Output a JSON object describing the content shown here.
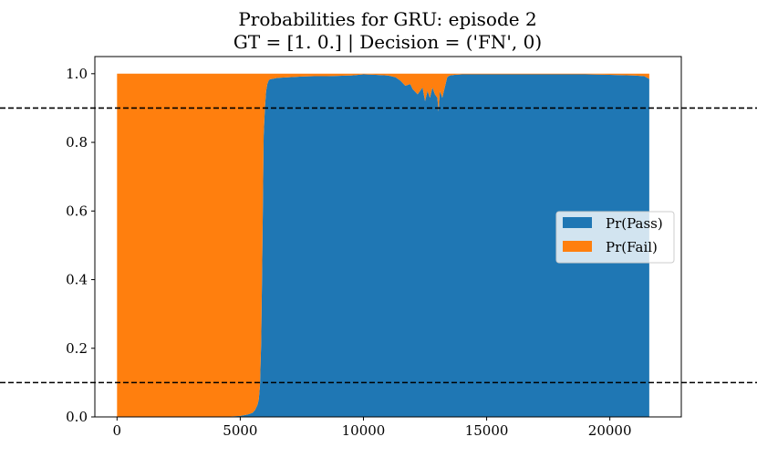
{
  "chart_data": {
    "type": "area",
    "title": "Probabilities for GRU: episode 2",
    "subtitle": "GT = [1. 0.] | Decision = ('FN', 0)",
    "xlabel": "",
    "ylabel": "",
    "xlim": [
      -900,
      22900
    ],
    "ylim": [
      0.0,
      1.05
    ],
    "xticks": [
      0,
      5000,
      10000,
      15000,
      20000
    ],
    "xtick_labels": [
      "0",
      "5000",
      "10000",
      "15000",
      "20000"
    ],
    "yticks": [
      0.0,
      0.2,
      0.4,
      0.6,
      0.8,
      1.0
    ],
    "ytick_labels": [
      "0.0",
      "0.2",
      "0.4",
      "0.6",
      "0.8",
      "1.0"
    ],
    "grid": false,
    "legend_position": "center-right",
    "thresholds": [
      0.9,
      0.1
    ],
    "threshold_color": "#000000",
    "x": [
      0,
      1000,
      2000,
      3000,
      4000,
      4500,
      5000,
      5300,
      5500,
      5600,
      5700,
      5750,
      5800,
      5850,
      5900,
      5950,
      6000,
      6050,
      6100,
      6150,
      6200,
      6300,
      6500,
      7000,
      7500,
      8000,
      8500,
      9000,
      9500,
      10000,
      10500,
      11000,
      11300,
      11500,
      11700,
      11900,
      12000,
      12200,
      12400,
      12500,
      12600,
      12700,
      12800,
      12900,
      13000,
      13050,
      13100,
      13200,
      13300,
      13400,
      13500,
      13700,
      14000,
      15000,
      16000,
      17000,
      18000,
      19000,
      20000,
      21000,
      21400,
      21600
    ],
    "series": [
      {
        "name": "Pr(Pass)",
        "color": "#1f77b4",
        "values": [
          0,
          0,
          0,
          0,
          0,
          0.001,
          0.003,
          0.007,
          0.012,
          0.02,
          0.035,
          0.05,
          0.09,
          0.22,
          0.5,
          0.82,
          0.9,
          0.95,
          0.97,
          0.98,
          0.984,
          0.985,
          0.988,
          0.99,
          0.992,
          0.993,
          0.993,
          0.994,
          0.995,
          0.998,
          0.997,
          0.995,
          0.99,
          0.98,
          0.965,
          0.97,
          0.955,
          0.94,
          0.96,
          0.92,
          0.95,
          0.93,
          0.96,
          0.94,
          0.93,
          0.89,
          0.95,
          0.93,
          0.96,
          0.99,
          0.995,
          0.997,
          0.998,
          0.998,
          0.998,
          0.998,
          0.998,
          0.998,
          0.997,
          0.995,
          0.993,
          0.985
        ]
      },
      {
        "name": "Pr(Fail)",
        "color": "#ff7f0e",
        "values": [
          1,
          1,
          1,
          1,
          1,
          0.999,
          0.997,
          0.993,
          0.988,
          0.98,
          0.965,
          0.95,
          0.91,
          0.78,
          0.5,
          0.18,
          0.1,
          0.05,
          0.03,
          0.02,
          0.016,
          0.015,
          0.012,
          0.01,
          0.008,
          0.007,
          0.007,
          0.006,
          0.005,
          0.002,
          0.003,
          0.005,
          0.01,
          0.02,
          0.035,
          0.03,
          0.045,
          0.06,
          0.04,
          0.08,
          0.05,
          0.07,
          0.04,
          0.06,
          0.07,
          0.11,
          0.05,
          0.07,
          0.04,
          0.01,
          0.005,
          0.003,
          0.002,
          0.002,
          0.002,
          0.002,
          0.002,
          0.002,
          0.003,
          0.005,
          0.007,
          0.015
        ]
      }
    ]
  }
}
